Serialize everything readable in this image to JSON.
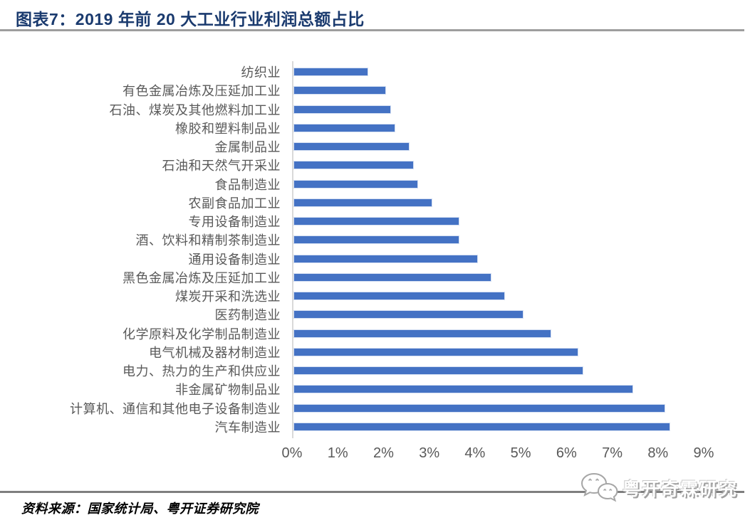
{
  "header": {
    "title": "图表7：2019 年前 20 大工业行业利润总额占比"
  },
  "chart_data": {
    "type": "bar",
    "orientation": "horizontal",
    "title": "2019 年前 20 大工业行业利润总额占比",
    "categories": [
      "纺织业",
      "有色金属冶炼及压延加工业",
      "石油、煤炭及其他燃料加工业",
      "橡胶和塑料制品业",
      "金属制品业",
      "石油和天然气开采业",
      "食品制造业",
      "农副食品加工业",
      "专用设备制造业",
      "酒、饮料和精制茶制造业",
      "通用设备制造业",
      "黑色金属冶炼及压延加工业",
      "煤炭开采和洗选业",
      "医药制造业",
      "化学原料及化学制品制造业",
      "电气机械及器材制造业",
      "电力、热力的生产和供应业",
      "非金属矿物制品业",
      "计算机、通信和其他电子设备制造业",
      "汽车制造业"
    ],
    "values": [
      1.6,
      2.0,
      2.1,
      2.2,
      2.5,
      2.6,
      2.7,
      3.0,
      3.6,
      3.6,
      4.0,
      4.3,
      4.6,
      5.0,
      5.6,
      6.2,
      6.3,
      7.4,
      8.1,
      8.2
    ],
    "unit": "%",
    "x_ticks": [
      "0%",
      "1%",
      "2%",
      "3%",
      "4%",
      "5%",
      "6%",
      "7%",
      "8%",
      "9%"
    ],
    "xlim": [
      0,
      9
    ],
    "xlabel": "",
    "ylabel": "",
    "grid": false,
    "legend": false,
    "bar_color": "#4472C4",
    "label_color": "#595959"
  },
  "watermark": {
    "text": "粤开奇霖研究",
    "icon": "wechat-icon"
  },
  "footer": {
    "source": "资料来源：国家统计局、粤开证券研究院"
  }
}
